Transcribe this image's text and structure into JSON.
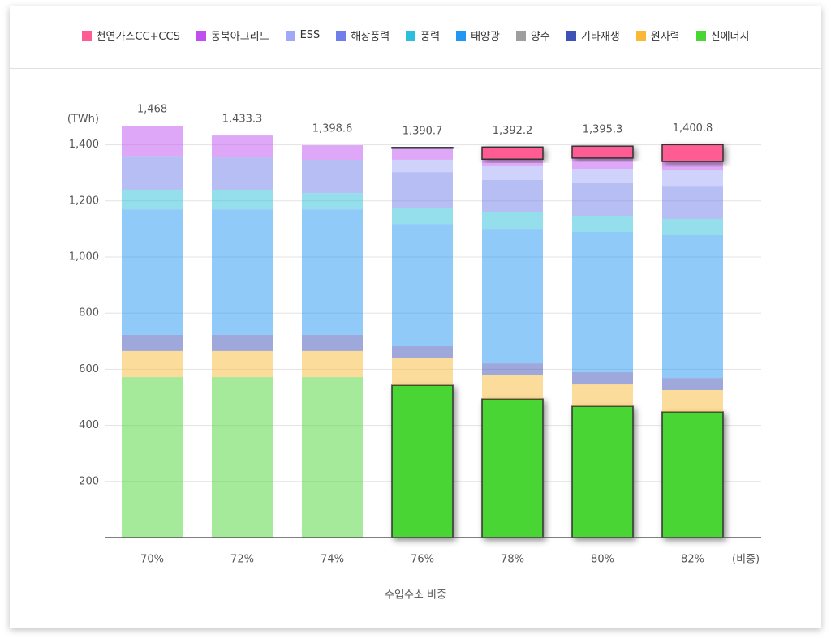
{
  "chart_data": {
    "type": "stacked_bar",
    "y_unit_label": "(TWh)",
    "x_unit_label": "(비중)",
    "x_label": "수입수소 비중",
    "categories": [
      "70%",
      "72%",
      "74%",
      "76%",
      "78%",
      "80%",
      "82%"
    ],
    "ylim": [
      0,
      1500
    ],
    "yticks": [
      200,
      400,
      600,
      800,
      {
        "value": 1000,
        "label": "1,000"
      },
      {
        "value": 1200,
        "label": "1,200"
      },
      {
        "value": 1400,
        "label": "1,400"
      }
    ],
    "grid": true,
    "totals": [
      1468,
      1433.3,
      1398.6,
      1390.7,
      1392.2,
      1395.3,
      1400.8
    ],
    "total_labels": [
      "1,468",
      "1,433.3",
      "1,398.6",
      "1,390.7",
      "1,392.2",
      "1,395.3",
      "1,400.8"
    ],
    "series": [
      {
        "name": "천연가스CC+CCS",
        "color": "#ff5c93",
        "values": [
          0,
          0,
          0,
          3.7,
          43.2,
          42.3,
          59.8
        ]
      },
      {
        "name": "동북아그리드",
        "color": "#c04ff0",
        "values": [
          110,
          78.3,
          51.6,
          40,
          25,
          38,
          32
        ]
      },
      {
        "name": "ESS",
        "color": "#a0a8f8",
        "values": [
          0,
          0,
          0,
          44,
          49,
          52,
          58
        ]
      },
      {
        "name": "해상풍력",
        "color": "#6f7ee8",
        "values": [
          118,
          115,
          119,
          127,
          116,
          116,
          115
        ]
      },
      {
        "name": "풍력",
        "color": "#2bbfdc",
        "values": [
          70,
          70,
          58,
          58,
          61,
          57,
          58
        ]
      },
      {
        "name": "태양광",
        "color": "#2196f3",
        "values": [
          447,
          447,
          447,
          436,
          477,
          500,
          509
        ]
      },
      {
        "name": "양수",
        "color": "#9e9e9e",
        "values": [
          0,
          0,
          0,
          0,
          0,
          0,
          0
        ]
      },
      {
        "name": "기타재생",
        "color": "#3f51b5",
        "values": [
          58,
          58,
          58,
          43,
          43,
          44,
          43
        ]
      },
      {
        "name": "원자력",
        "color": "#f9b935",
        "values": [
          93,
          93,
          93,
          96,
          84,
          78,
          78
        ]
      },
      {
        "name": "신에너지",
        "color": "#49d635",
        "values": [
          572,
          572,
          572,
          543,
          494,
          468,
          448
        ]
      }
    ]
  }
}
